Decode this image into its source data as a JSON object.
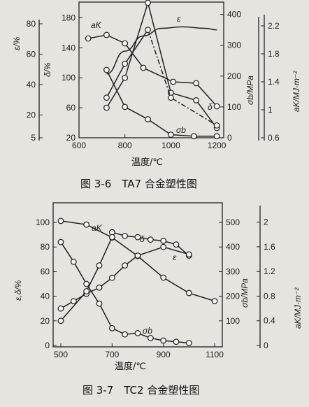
{
  "chart_data": [
    {
      "type": "line",
      "caption": "图 3-6　TA7 合金塑性图",
      "xlabel": "温度/℃",
      "xticks": [
        600,
        800,
        1000,
        1200
      ],
      "xlim": [
        600,
        1230
      ],
      "axes": [
        {
          "id": "eps",
          "label": "ε/%",
          "ticks": [
            5,
            20,
            40,
            60,
            80
          ],
          "range": [
            5,
            80
          ]
        },
        {
          "id": "delta",
          "label": "δ/%",
          "ticks": [
            20,
            60,
            100,
            140,
            180
          ],
          "range": [
            20,
            200
          ]
        },
        {
          "id": "sigma",
          "label": "σb/MPa",
          "ticks": [
            0,
            100,
            200,
            300,
            400
          ],
          "range": [
            0,
            440
          ]
        },
        {
          "id": "ak",
          "label": "aK/MJ·m⁻²",
          "ticks": [
            0.6,
            1.0,
            1.4,
            1.8,
            2.2
          ],
          "range": [
            0.6,
            2.3
          ]
        }
      ],
      "series": [
        {
          "name": "aK",
          "axis": "ak",
          "marker": "circle",
          "x": [
            640,
            720,
            800,
            880,
            1010,
            1110,
            1200
          ],
          "y": [
            2.02,
            2.07,
            1.95,
            1.6,
            1.4,
            1.38,
            1.05
          ]
        },
        {
          "name": "δ",
          "axis": "delta",
          "marker": "circle",
          "x": [
            720,
            800,
            900,
            1000,
            1110,
            1200
          ],
          "y": [
            60,
            100,
            200,
            80,
            70,
            33
          ]
        },
        {
          "name": "ε",
          "axis": "eps",
          "marker": "none",
          "x": [
            720,
            800,
            880,
            960,
            1050,
            1150,
            1200
          ],
          "y": [
            47,
            62,
            72,
            77,
            78,
            77,
            76
          ]
        },
        {
          "name": "σb",
          "axis": "sigma",
          "marker": "circle",
          "x": [
            720,
            800,
            900,
            1000,
            1100,
            1200
          ],
          "y": [
            220,
            100,
            60,
            10,
            5,
            5
          ]
        },
        {
          "name": "",
          "axis": "sigma",
          "marker": "circle",
          "dashed_tail": true,
          "x": [
            720,
            800,
            900,
            1000,
            1200
          ],
          "y": [
            130,
            240,
            350,
            130,
            40
          ]
        }
      ],
      "series_labels": {
        "ak": "aK",
        "epsilon": "ε",
        "delta": "δ",
        "sigma": "σb"
      }
    },
    {
      "type": "line",
      "caption": "图 3-7　TC2 合金塑性图",
      "xlabel": "温度/℃",
      "xticks": [
        500,
        700,
        900,
        1100
      ],
      "xlim": [
        470,
        1130
      ],
      "axes": [
        {
          "id": "ed",
          "label": "ε,δ/%",
          "ticks": [
            0,
            20,
            40,
            60,
            80,
            100
          ],
          "range": [
            0,
            100
          ]
        },
        {
          "id": "sigma",
          "label": "σb/MPa",
          "ticks": [
            100,
            200,
            300,
            400,
            500
          ],
          "range": [
            0,
            500
          ]
        },
        {
          "id": "ak",
          "label": "aK/MJ·m⁻²",
          "ticks": [
            0,
            0.4,
            0.8,
            1.2,
            1.6,
            2.0
          ],
          "range": [
            0,
            2.2
          ]
        }
      ],
      "series": [
        {
          "name": "aK",
          "axis": "ak",
          "marker": "circle",
          "x": [
            500,
            600,
            700,
            800,
            900,
            1000,
            1100
          ],
          "y": [
            2.02,
            1.96,
            1.75,
            1.45,
            1.1,
            0.85,
            0.72
          ]
        },
        {
          "name": "δ",
          "axis": "ed",
          "marker": "circle",
          "x": [
            700,
            750,
            800,
            850,
            900,
            950,
            1000
          ],
          "y": [
            92,
            89,
            88,
            86,
            85,
            82,
            73
          ]
        },
        {
          "name": "ε",
          "axis": "ed",
          "marker": "circle",
          "x": [
            500,
            550,
            600,
            650,
            700,
            750,
            800,
            900,
            1000
          ],
          "y": [
            30,
            36,
            42,
            47,
            55,
            65,
            73,
            80,
            74
          ]
        },
        {
          "name": "",
          "axis": "ed",
          "marker": "circle",
          "x": [
            500,
            600,
            650,
            700
          ],
          "y": [
            20,
            44,
            65,
            88
          ]
        },
        {
          "name": "σb",
          "axis": "sigma",
          "marker": "circle",
          "x": [
            500,
            550,
            600,
            650,
            700,
            750,
            800,
            850,
            900,
            950,
            1000
          ],
          "y": [
            420,
            340,
            250,
            170,
            70,
            45,
            50,
            30,
            20,
            15,
            10
          ]
        }
      ],
      "series_labels": {
        "ak": "aK",
        "epsilon": "ε",
        "delta": "δ",
        "sigma": "σb"
      }
    }
  ]
}
